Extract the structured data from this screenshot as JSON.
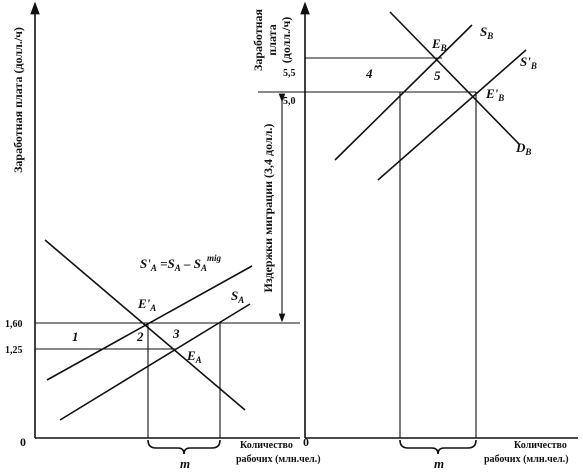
{
  "left_panel": {
    "y_axis_label": "Заработная плата (долл./ч)",
    "y_ticks": [
      "1,60",
      "1,25"
    ],
    "origin": "0",
    "x_axis_label": [
      "Количество",
      "рабочих (млн.чел.)"
    ],
    "supply_shift_label": {
      "s_prime": "S'",
      "sub1": "A",
      "eq": " =S",
      "sub2": "A",
      "minus": " – S",
      "sub3": "A",
      "sup": "mig"
    },
    "equilibrium_new": {
      "main": "E'",
      "sub": "A"
    },
    "equilibrium": {
      "main": "E",
      "sub": "A"
    },
    "supply": {
      "main": "S",
      "sub": "A"
    },
    "areas": [
      "1",
      "2",
      "3"
    ],
    "brace_label": "m"
  },
  "migration_cost_label": "Издержки миграции (3,4 долл.)",
  "right_panel": {
    "y_axis_label": [
      "Заработная",
      "плата",
      "(долл./ч)"
    ],
    "y_ticks": [
      "5,5",
      "5,0"
    ],
    "origin": "0",
    "x_axis_label": [
      "Количество",
      "рабочих (млн.чел.)"
    ],
    "equilibrium": {
      "main": "E",
      "sub": "B"
    },
    "equilibrium_new": {
      "main": "E'",
      "sub": "B"
    },
    "supply": {
      "main": "S",
      "sub": "B"
    },
    "supply_new": {
      "main": "S'",
      "sub": "B"
    },
    "demand": {
      "main": "D",
      "sub": "B"
    },
    "areas": [
      "4",
      "5"
    ],
    "brace_label": "m"
  }
}
